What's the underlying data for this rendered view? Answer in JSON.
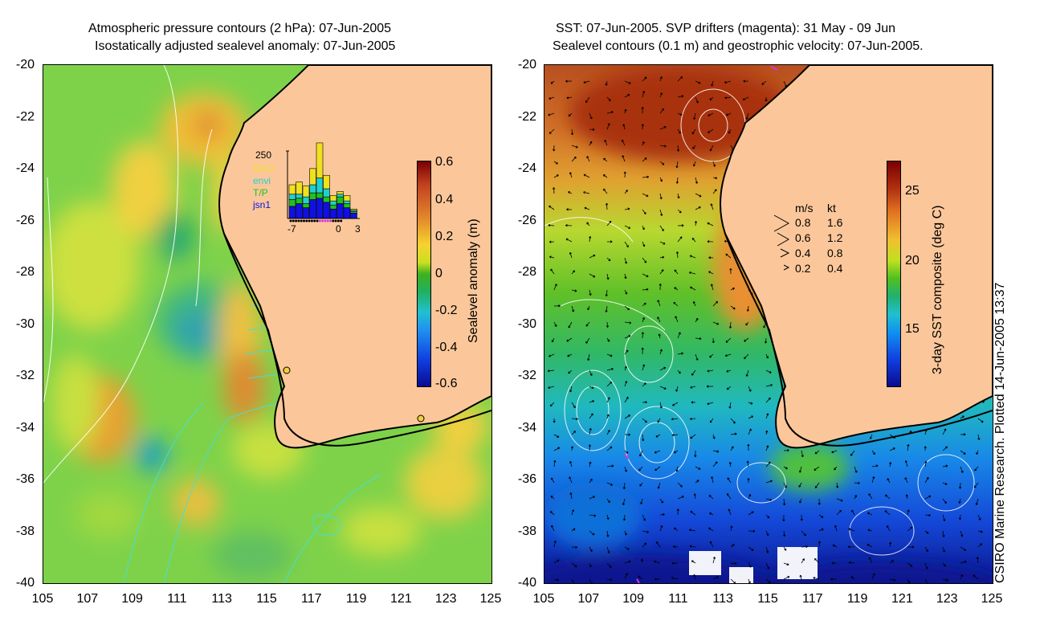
{
  "left_panel": {
    "title_line1": "Atmospheric pressure contours (2 hPa): 07-Jun-2005",
    "title_line2": "Isostatically adjusted sealevel anomaly: 07-Jun-2005",
    "y_ticks": [
      "-20",
      "-22",
      "-24",
      "-26",
      "-28",
      "-30",
      "-32",
      "-34",
      "-36",
      "-38",
      "-40"
    ],
    "x_ticks": [
      "105",
      "107",
      "109",
      "111",
      "113",
      "115",
      "117",
      "119",
      "121",
      "123",
      "125"
    ],
    "colorbar": {
      "label": "Sealevel anomaly (m)",
      "ticks": [
        "0.6",
        "0.4",
        "0.2",
        "0",
        "-0.2",
        "-0.4",
        "-0.6"
      ]
    },
    "histogram": {
      "max_label": "250",
      "series": [
        "GFO",
        "envi",
        "T/P",
        "jsn1"
      ],
      "series_colors": [
        "#f0e020",
        "#20d0d0",
        "#20c020",
        "#1010e0"
      ],
      "x_ticks": [
        "-7",
        "0",
        "3"
      ],
      "stacks": [
        [
          35,
          20,
          25,
          45
        ],
        [
          45,
          15,
          20,
          55
        ],
        [
          40,
          25,
          15,
          40
        ],
        [
          60,
          30,
          25,
          70
        ],
        [
          130,
          55,
          20,
          75
        ],
        [
          50,
          30,
          20,
          60
        ],
        [
          20,
          15,
          15,
          35
        ],
        [
          10,
          10,
          25,
          55
        ],
        [
          20,
          10,
          15,
          40
        ],
        [
          5,
          5,
          5,
          20
        ]
      ]
    }
  },
  "right_panel": {
    "title_line1": "SST: 07-Jun-2005. SVP drifters (magenta): 31 May - 09 Jun",
    "title_line2": "Sealevel contours (0.1 m) and geostrophic velocity: 07-Jun-2005.",
    "y_ticks": [
      "-20",
      "-22",
      "-24",
      "-26",
      "-28",
      "-30",
      "-32",
      "-34",
      "-36",
      "-38",
      "-40"
    ],
    "x_ticks": [
      "105",
      "107",
      "109",
      "111",
      "113",
      "115",
      "117",
      "119",
      "121",
      "123",
      "125"
    ],
    "colorbar": {
      "label": "3-day SST composite (deg C)",
      "ticks": [
        "25",
        "20",
        "15"
      ]
    },
    "velocity_legend": {
      "header_ms": "m/s",
      "header_kt": "kt",
      "rows": [
        {
          "ms": "0.8",
          "kt": "1.6"
        },
        {
          "ms": "0.6",
          "kt": "1.2"
        },
        {
          "ms": "0.4",
          "kt": "0.8"
        },
        {
          "ms": "0.2",
          "kt": "0.4"
        }
      ]
    }
  },
  "credit": "CSIRO Marine Research. Plotted 14-Jun-2005 13:37"
}
